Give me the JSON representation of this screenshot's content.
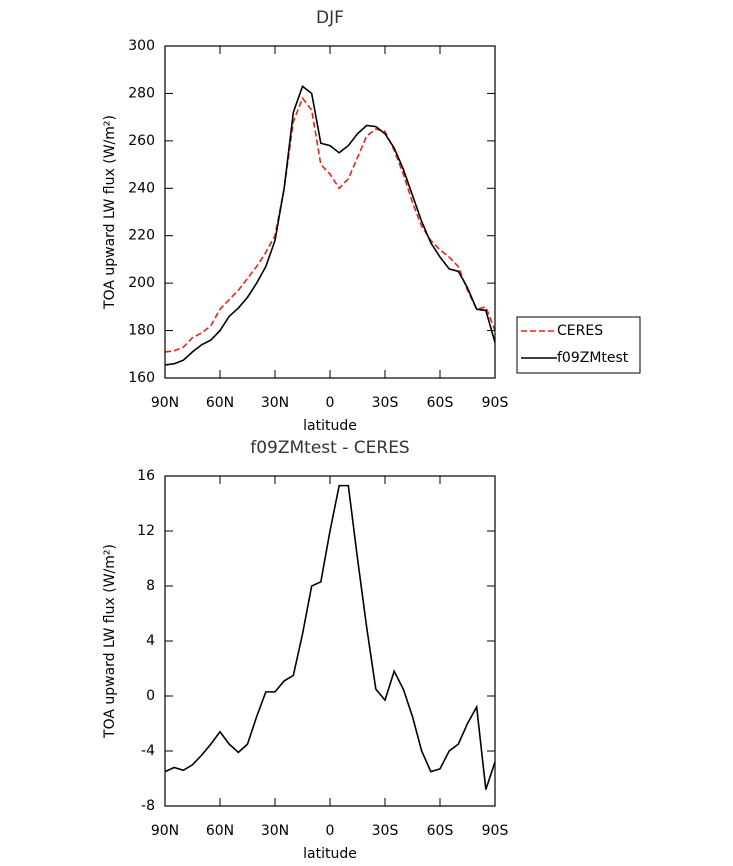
{
  "chart_data": [
    {
      "type": "line",
      "title": "DJF",
      "xlabel": "latitude",
      "ylabel": "TOA upward LW flux (W/m²)",
      "x": [
        90,
        85,
        80,
        75,
        70,
        65,
        60,
        55,
        50,
        45,
        40,
        35,
        30,
        25,
        20,
        15,
        10,
        5,
        0,
        -5,
        -10,
        -15,
        -20,
        -25,
        -30,
        -35,
        -40,
        -45,
        -50,
        -55,
        -60,
        -65,
        -70,
        -75,
        -80,
        -85,
        -90
      ],
      "xlim": [
        90,
        -90
      ],
      "xticks": [
        {
          "value": 90,
          "label": "90N"
        },
        {
          "value": 60,
          "label": "60N"
        },
        {
          "value": 30,
          "label": "30N"
        },
        0,
        {
          "value": -30,
          "label": "30S"
        },
        {
          "value": -60,
          "label": "60S"
        },
        {
          "value": -90,
          "label": "90S"
        }
      ],
      "ylim": [
        160,
        300
      ],
      "yticks": [
        160,
        180,
        200,
        220,
        240,
        260,
        280,
        300
      ],
      "legend": "right",
      "series": [
        {
          "name": "CERES",
          "color": "#e8201c",
          "linestyle": "dashed",
          "values": [
            171,
            171.5,
            173,
            177,
            179,
            182,
            189,
            193,
            197,
            202,
            207,
            213,
            220,
            240,
            268,
            278,
            273,
            250,
            246,
            240,
            244,
            253,
            262,
            265,
            264,
            256,
            246,
            234,
            224,
            218,
            214,
            211,
            207,
            197,
            189,
            190,
            180
          ]
        },
        {
          "name": "f09ZMtest",
          "color": "#000000",
          "linestyle": "solid",
          "values": [
            165.5,
            166,
            167.5,
            171,
            174,
            176,
            180,
            186,
            189.5,
            194,
            200,
            207,
            218,
            240,
            272,
            283,
            280,
            259,
            258,
            255,
            258,
            263,
            266.5,
            266,
            263,
            257,
            248,
            237,
            226,
            217,
            211,
            206,
            205,
            198,
            189,
            188.5,
            175
          ]
        }
      ]
    },
    {
      "type": "line",
      "title": "f09ZMtest - CERES",
      "xlabel": "latitude",
      "ylabel": "TOA upward LW flux (W/m²)",
      "x": [
        90,
        85,
        80,
        75,
        70,
        65,
        60,
        55,
        50,
        45,
        40,
        35,
        30,
        25,
        20,
        15,
        10,
        5,
        0,
        -5,
        -10,
        -15,
        -20,
        -25,
        -30,
        -35,
        -40,
        -45,
        -50,
        -55,
        -60,
        -65,
        -70,
        -75,
        -80,
        -85,
        -90
      ],
      "xlim": [
        90,
        -90
      ],
      "xticks": [
        {
          "value": 90,
          "label": "90N"
        },
        {
          "value": 60,
          "label": "60N"
        },
        {
          "value": 30,
          "label": "30N"
        },
        0,
        {
          "value": -30,
          "label": "30S"
        },
        {
          "value": -60,
          "label": "60S"
        },
        {
          "value": -90,
          "label": "90S"
        }
      ],
      "ylim": [
        -8,
        16
      ],
      "yticks": [
        -8,
        -4,
        0,
        4,
        8,
        12,
        16
      ],
      "series": [
        {
          "color": "#000000",
          "linestyle": "solid",
          "values": [
            -5.5,
            -5.2,
            -5.4,
            -5,
            -4.3,
            -3.5,
            -2.6,
            -3.5,
            -4.1,
            -3.5,
            -1.5,
            0.3,
            0.3,
            1.1,
            1.5,
            4.5,
            8,
            8.3,
            12,
            15.3,
            15.3,
            10,
            5,
            0.5,
            -0.3,
            1.8,
            0.5,
            -1.5,
            -4,
            -5.5,
            -5.3,
            -4,
            -3.5,
            -2,
            -0.8,
            -6.8,
            -4.8
          ]
        }
      ]
    }
  ]
}
